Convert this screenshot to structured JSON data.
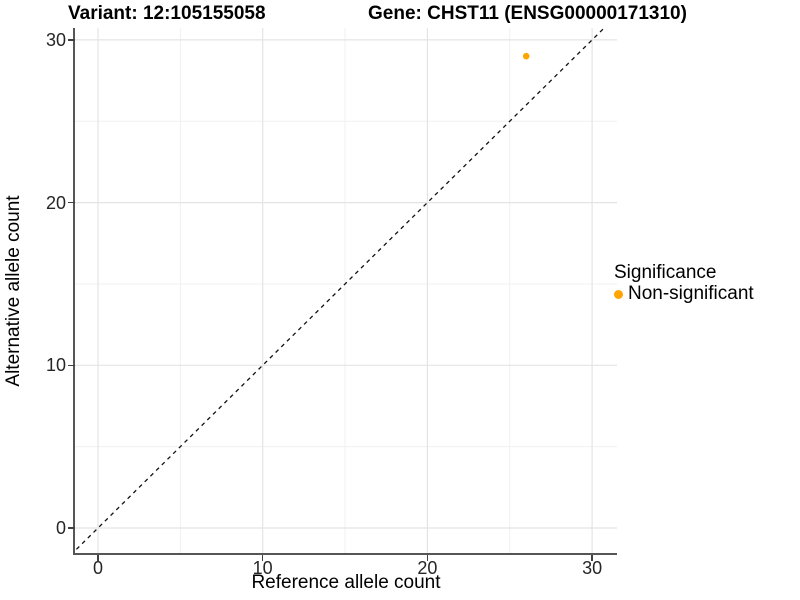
{
  "header": {
    "variant_title": "Variant: 12:105155058",
    "gene_title": "Gene: CHST11 (ENSG00000171310)"
  },
  "chart_data": {
    "type": "scatter",
    "title": "Variant: 12:105155058   Gene: CHST11 (ENSG00000171310)",
    "xlabel": "Reference allele count",
    "ylabel": "Alternative allele count",
    "x_ticks": [
      0,
      10,
      20,
      30
    ],
    "y_ticks": [
      0,
      10,
      20,
      30
    ],
    "xlim": [
      -1.5,
      31.5
    ],
    "ylim": [
      -1.6,
      30.8
    ],
    "grid": "major+minor",
    "background": "#ffffff",
    "identity_line": {
      "equation": "y = x",
      "style": "dashed",
      "color": "#111111"
    },
    "series": [
      {
        "name": "Non-significant",
        "color": "#FFA500",
        "points": [
          {
            "x": 26,
            "y": 29
          }
        ]
      }
    ],
    "legend": {
      "title": "Significance",
      "position": "right",
      "items": [
        {
          "label": "Non-significant",
          "color": "#FFA500"
        }
      ]
    }
  }
}
